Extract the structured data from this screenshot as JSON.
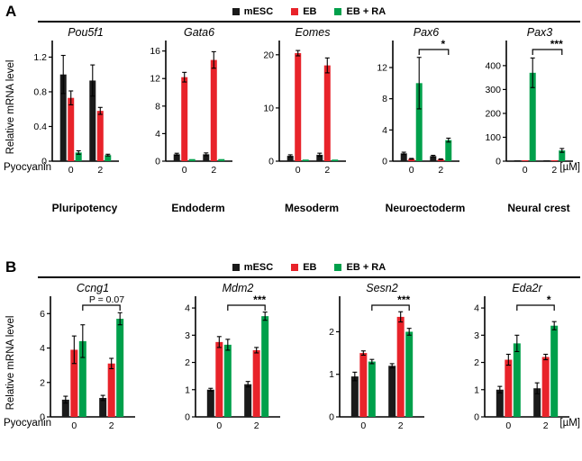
{
  "panels": [
    {
      "label": "A",
      "group_labels": [
        "Pluripotency",
        "Endoderm",
        "Mesoderm",
        "Neuroectoderm",
        "Neural crest"
      ]
    },
    {
      "label": "B",
      "group_labels": []
    }
  ],
  "legend": {
    "items": [
      {
        "label": "mESC",
        "color": "#1a1a1a"
      },
      {
        "label": "EB",
        "color": "#e8232a"
      },
      {
        "label": "EB + RA",
        "color": "#00a04b"
      }
    ]
  },
  "ylabel": "Relative mRNA level",
  "xaxis": {
    "label": "Pyocyanin",
    "unit": "[µM]",
    "categories": [
      "0",
      "2"
    ]
  },
  "chart_data": [
    {
      "panel": "A",
      "type": "bar",
      "title": "Pou5f1",
      "group_label": "Pluripotency",
      "categories": [
        "0",
        "2"
      ],
      "ylim": [
        0,
        1.35
      ],
      "yticks": [
        0,
        0.4,
        0.8,
        1.2
      ],
      "series": [
        {
          "name": "mESC",
          "values": [
            1.0,
            0.93
          ],
          "errors": [
            0.22,
            0.18
          ]
        },
        {
          "name": "EB",
          "values": [
            0.73,
            0.58
          ],
          "errors": [
            0.08,
            0.04
          ]
        },
        {
          "name": "EB + RA",
          "values": [
            0.1,
            0.07
          ],
          "errors": [
            0.02,
            0.01
          ]
        }
      ],
      "significance": null
    },
    {
      "panel": "A",
      "type": "bar",
      "title": "Gata6",
      "group_label": "Endoderm",
      "categories": [
        "0",
        "2"
      ],
      "ylim": [
        0,
        17
      ],
      "yticks": [
        0,
        4,
        8,
        12,
        16
      ],
      "series": [
        {
          "name": "mESC",
          "values": [
            1.0,
            1.0
          ],
          "errors": [
            0.15,
            0.2
          ]
        },
        {
          "name": "EB",
          "values": [
            12.2,
            14.7
          ],
          "errors": [
            0.7,
            1.2
          ]
        },
        {
          "name": "EB + RA",
          "values": [
            0.3,
            0.3
          ],
          "errors": [
            0,
            0
          ]
        }
      ],
      "significance": null
    },
    {
      "panel": "A",
      "type": "bar",
      "title": "Eomes",
      "group_label": "Mesoderm",
      "categories": [
        "0",
        "2"
      ],
      "ylim": [
        0,
        22
      ],
      "yticks": [
        0,
        10,
        20
      ],
      "series": [
        {
          "name": "mESC",
          "values": [
            1.0,
            1.2
          ],
          "errors": [
            0.2,
            0.3
          ]
        },
        {
          "name": "EB",
          "values": [
            20.3,
            18.0
          ],
          "errors": [
            0.5,
            1.4
          ]
        },
        {
          "name": "EB + RA",
          "values": [
            0.3,
            0.3
          ],
          "errors": [
            0,
            0
          ]
        }
      ],
      "significance": null
    },
    {
      "panel": "A",
      "type": "bar",
      "title": "Pax6",
      "group_label": "Neuroectoderm",
      "categories": [
        "0",
        "2"
      ],
      "ylim": [
        0,
        15
      ],
      "yticks": [
        0,
        4,
        8,
        12
      ],
      "series": [
        {
          "name": "mESC",
          "values": [
            1.0,
            0.65
          ],
          "errors": [
            0.15,
            0.1
          ]
        },
        {
          "name": "EB",
          "values": [
            0.3,
            0.25
          ],
          "errors": [
            0.05,
            0.05
          ]
        },
        {
          "name": "EB + RA",
          "values": [
            10.0,
            2.7
          ],
          "errors": [
            3.3,
            0.25
          ]
        }
      ],
      "significance": {
        "label": "*",
        "series": "EB + RA",
        "between": [
          "0",
          "2"
        ]
      }
    },
    {
      "panel": "A",
      "type": "bar",
      "title": "Pax3",
      "group_label": "Neural crest",
      "categories": [
        "0",
        "2"
      ],
      "ylim": [
        0,
        490
      ],
      "yticks": [
        0,
        100,
        200,
        300,
        400
      ],
      "series": [
        {
          "name": "mESC",
          "values": [
            4,
            4
          ],
          "errors": [
            0,
            0
          ]
        },
        {
          "name": "EB",
          "values": [
            4,
            4
          ],
          "errors": [
            0,
            0
          ]
        },
        {
          "name": "EB + RA",
          "values": [
            370,
            45
          ],
          "errors": [
            62,
            8
          ]
        }
      ],
      "significance": {
        "label": "***",
        "series": "EB + RA",
        "between": [
          "0",
          "2"
        ]
      }
    },
    {
      "panel": "B",
      "type": "bar",
      "title": "Ccng1",
      "group_label": "",
      "categories": [
        "0",
        "2"
      ],
      "ylim": [
        0,
        6.8
      ],
      "yticks": [
        0,
        2,
        4,
        6
      ],
      "series": [
        {
          "name": "mESC",
          "values": [
            1.0,
            1.1
          ],
          "errors": [
            0.2,
            0.15
          ]
        },
        {
          "name": "EB",
          "values": [
            3.9,
            3.1
          ],
          "errors": [
            0.8,
            0.3
          ]
        },
        {
          "name": "EB + RA",
          "values": [
            4.4,
            5.7
          ],
          "errors": [
            0.95,
            0.35
          ]
        }
      ],
      "significance": {
        "label": "P = 0.07",
        "series": "EB + RA",
        "between": [
          "0",
          "2"
        ]
      }
    },
    {
      "panel": "B",
      "type": "bar",
      "title": "Mdm2",
      "group_label": "",
      "categories": [
        "0",
        "2"
      ],
      "ylim": [
        0,
        4.3
      ],
      "yticks": [
        0,
        1,
        2,
        3,
        4
      ],
      "series": [
        {
          "name": "mESC",
          "values": [
            1.0,
            1.2
          ],
          "errors": [
            0.05,
            0.1
          ]
        },
        {
          "name": "EB",
          "values": [
            2.75,
            2.45
          ],
          "errors": [
            0.2,
            0.1
          ]
        },
        {
          "name": "EB + RA",
          "values": [
            2.65,
            3.7
          ],
          "errors": [
            0.2,
            0.15
          ]
        }
      ],
      "significance": {
        "label": "***",
        "series": "EB + RA",
        "between": [
          "0",
          "2"
        ]
      }
    },
    {
      "panel": "B",
      "type": "bar",
      "title": "Sesn2",
      "group_label": "",
      "categories": [
        "0",
        "2"
      ],
      "ylim": [
        0,
        2.75
      ],
      "yticks": [
        0,
        1,
        2
      ],
      "series": [
        {
          "name": "mESC",
          "values": [
            0.95,
            1.2
          ],
          "errors": [
            0.1,
            0.05
          ]
        },
        {
          "name": "EB",
          "values": [
            1.5,
            2.35
          ],
          "errors": [
            0.05,
            0.12
          ]
        },
        {
          "name": "EB + RA",
          "values": [
            1.3,
            2.0
          ],
          "errors": [
            0.05,
            0.08
          ]
        }
      ],
      "significance": {
        "label": "***",
        "series": "EB + RA",
        "between": [
          "0",
          "2"
        ]
      }
    },
    {
      "panel": "B",
      "type": "bar",
      "title": "Eda2r",
      "group_label": "",
      "categories": [
        "0",
        "2"
      ],
      "ylim": [
        0,
        4.3
      ],
      "yticks": [
        0,
        1,
        2,
        3,
        4
      ],
      "series": [
        {
          "name": "mESC",
          "values": [
            1.0,
            1.05
          ],
          "errors": [
            0.12,
            0.2
          ]
        },
        {
          "name": "EB",
          "values": [
            2.1,
            2.2
          ],
          "errors": [
            0.2,
            0.1
          ]
        },
        {
          "name": "EB + RA",
          "values": [
            2.7,
            3.35
          ],
          "errors": [
            0.3,
            0.15
          ]
        }
      ],
      "significance": {
        "label": "*",
        "series": "EB + RA",
        "between": [
          "0",
          "2"
        ]
      }
    }
  ]
}
